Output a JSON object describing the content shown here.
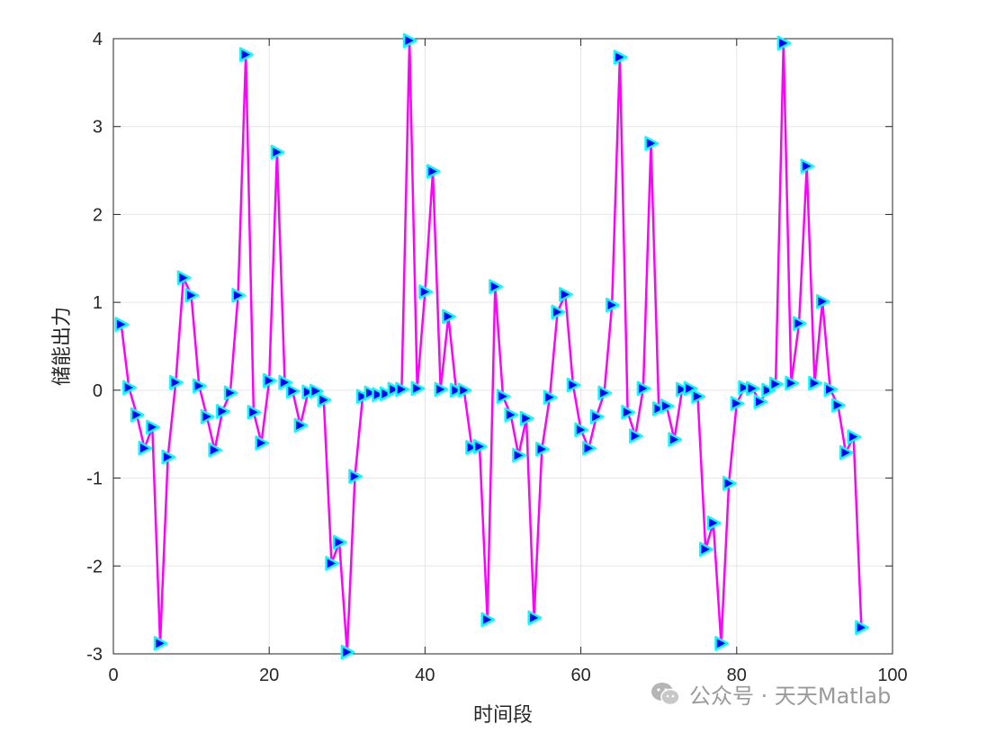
{
  "chart_data": {
    "type": "line",
    "xlabel": "时间段",
    "ylabel": "储能出力",
    "xlim": [
      0,
      100
    ],
    "ylim": [
      -3,
      4
    ],
    "xticks": [
      0,
      20,
      40,
      60,
      80,
      100
    ],
    "yticks": [
      -3,
      -2,
      -1,
      0,
      1,
      2,
      3,
      4
    ],
    "grid": true,
    "line_color": "#ff00ff",
    "marker": "triangle-right",
    "marker_edge_color": "#00ffff",
    "marker_face_color": "#0000ff",
    "x": [
      1,
      2,
      3,
      4,
      5,
      6,
      7,
      8,
      9,
      10,
      11,
      12,
      13,
      14,
      15,
      16,
      17,
      18,
      19,
      20,
      21,
      22,
      23,
      24,
      25,
      26,
      27,
      28,
      29,
      30,
      31,
      32,
      33,
      34,
      35,
      36,
      37,
      38,
      39,
      40,
      41,
      42,
      43,
      44,
      45,
      46,
      47,
      48,
      49,
      50,
      51,
      52,
      53,
      54,
      55,
      56,
      57,
      58,
      59,
      60,
      61,
      62,
      63,
      64,
      65,
      66,
      67,
      68,
      69,
      70,
      71,
      72,
      73,
      74,
      75,
      76,
      77,
      78,
      79,
      80,
      81,
      82,
      83,
      84,
      85,
      86,
      87,
      88,
      89,
      90,
      91,
      92,
      93,
      94,
      95,
      96
    ],
    "y": [
      0.75,
      0.03,
      -0.28,
      -0.66,
      -0.42,
      -2.88,
      -0.76,
      0.09,
      1.28,
      1.08,
      0.05,
      -0.3,
      -0.68,
      -0.24,
      -0.03,
      1.08,
      3.82,
      -0.25,
      -0.6,
      0.11,
      2.71,
      0.09,
      -0.01,
      -0.4,
      -0.02,
      -0.01,
      -0.11,
      -1.97,
      -1.73,
      -2.98,
      -0.98,
      -0.07,
      -0.03,
      -0.05,
      -0.04,
      0.01,
      0.01,
      3.98,
      0.02,
      1.12,
      2.49,
      0.01,
      0.84,
      0.0,
      0.0,
      -0.65,
      -0.64,
      -2.61,
      1.18,
      -0.07,
      -0.28,
      -0.74,
      -0.32,
      -2.59,
      -0.67,
      -0.08,
      0.89,
      1.09,
      0.06,
      -0.45,
      -0.66,
      -0.3,
      -0.03,
      0.97,
      3.79,
      -0.25,
      -0.52,
      0.02,
      2.81,
      -0.21,
      -0.18,
      -0.56,
      0.01,
      0.02,
      -0.07,
      -1.81,
      -1.51,
      -2.88,
      -1.06,
      -0.15,
      0.03,
      0.02,
      -0.13,
      0.0,
      0.07,
      3.95,
      0.08,
      0.76,
      2.55,
      0.08,
      1.01,
      0.01,
      -0.17,
      -0.71,
      -0.53,
      -2.7
    ]
  },
  "watermark": {
    "icon": "wechat-icon",
    "text": "公众号 · 天天Matlab"
  }
}
